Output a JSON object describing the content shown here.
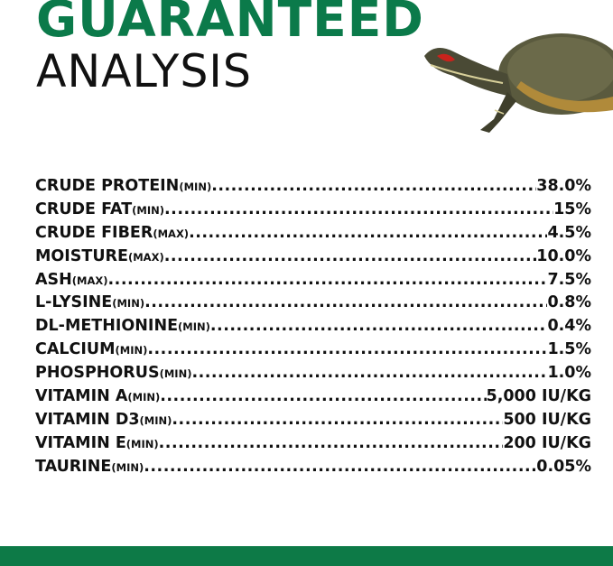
{
  "header": {
    "title_line1": "GUARANTEED",
    "title_line2": "ANALYSIS"
  },
  "image": {
    "icon": "red-eared-slider-turtle"
  },
  "colors": {
    "brand_green": "#0b7a4a",
    "text": "#111111"
  },
  "analysis": [
    {
      "name": "CRUDE PROTEIN",
      "qualifier": "(MIN)",
      "value": "38.0%"
    },
    {
      "name": "CRUDE FAT",
      "qualifier": "(MIN)",
      "value": "15%"
    },
    {
      "name": "CRUDE FIBER",
      "qualifier": "(MAX)",
      "value": "4.5%"
    },
    {
      "name": "MOISTURE",
      "qualifier": "(MAX)",
      "value": "10.0%"
    },
    {
      "name": "ASH",
      "qualifier": "(MAX)",
      "value": "7.5%"
    },
    {
      "name": "L-LYSINE",
      "qualifier": "(MIN)",
      "value": "0.8%"
    },
    {
      "name": "DL-METHIONINE",
      "qualifier": "(MIN)",
      "value": "0.4%"
    },
    {
      "name": "CALCIUM",
      "qualifier": "(MIN)",
      "value": "1.5%"
    },
    {
      "name": "PHOSPHORUS",
      "qualifier": "(MIN)",
      "value": "1.0%"
    },
    {
      "name": "VITAMIN A",
      "qualifier": "(MIN)",
      "value": "5,000 IU/KG"
    },
    {
      "name": "VITAMIN D3",
      "qualifier": "(MIN)",
      "value": "500 IU/KG"
    },
    {
      "name": "VITAMIN E",
      "qualifier": "(MIN)",
      "value": "200 IU/KG"
    },
    {
      "name": "TAURINE",
      "qualifier": "(MIN)",
      "value": "0.05%"
    }
  ]
}
